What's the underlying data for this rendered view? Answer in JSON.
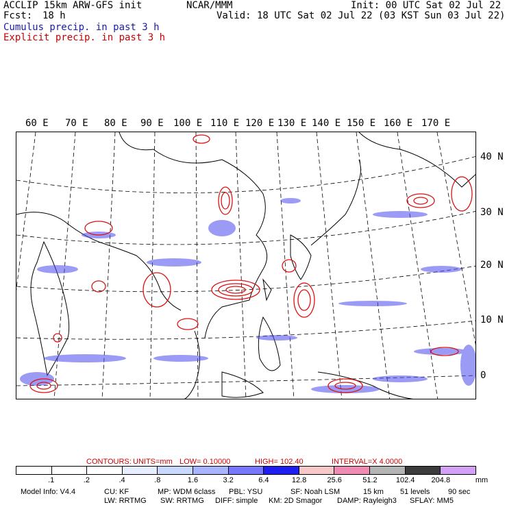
{
  "header": {
    "model": "ACCLIP 15km ARW-GFS init",
    "org": "NCAR/MMM",
    "init": "Init: 00 UTC Sat 02 Jul 22",
    "fcst_label": "Fcst:",
    "fcst_value": "18 h",
    "valid": "Valid: 18 UTC Sat 02 Jul 22 (03 KST Sun 03 Jul 22)",
    "legend_cumulus": "Cumulus precip. in past 3 h",
    "legend_explicit": "Explicit precip. in past 3 h"
  },
  "map": {
    "lon_labels": [
      "60 E",
      "70 E",
      "80 E",
      "90 E",
      "100 E",
      "110 E",
      "120 E",
      "130 E",
      "140 E",
      "150 E",
      "160 E",
      "170 E"
    ],
    "lat_labels": [
      "40 N",
      "30 N",
      "20 N",
      "10 N",
      "0"
    ]
  },
  "contours": {
    "label": "CONTOURS:",
    "units": "UNITS=mm",
    "low": "LOW= 0.10000",
    "high": "HIGH= 102.40",
    "interval": "INTERVAL=X 4.0000"
  },
  "colorbar": {
    "labels": [
      ".1",
      ".2",
      ".4",
      ".8",
      "1.6",
      "3.2",
      "6.4",
      "12.8",
      "25.6",
      "51.2",
      "102.4",
      "204.8"
    ],
    "units": "mm",
    "colors": [
      "#ffffff",
      "#ffffff",
      "#ffffff",
      "#e6eeff",
      "#c8d8ff",
      "#a8b4ff",
      "#7878ff",
      "#1e1ef0",
      "#f6c8c8",
      "#f08cb4",
      "#b4b4b4",
      "#3c3c3c",
      "#d2a0f5"
    ]
  },
  "footer": {
    "line1": [
      "Model Info: V4.4",
      "CU: KF",
      "MP: WDM 6class",
      "PBL: YSU",
      "SF: Noah LSM",
      "15 km",
      "51 levels",
      "90 sec"
    ],
    "line2": [
      "LW: RRTMG",
      "SW: RRTMG",
      "DIFF: simple",
      "KM: 2D Smagor",
      "DAMP: Rayleigh3",
      "SFLAY: MM5"
    ]
  }
}
